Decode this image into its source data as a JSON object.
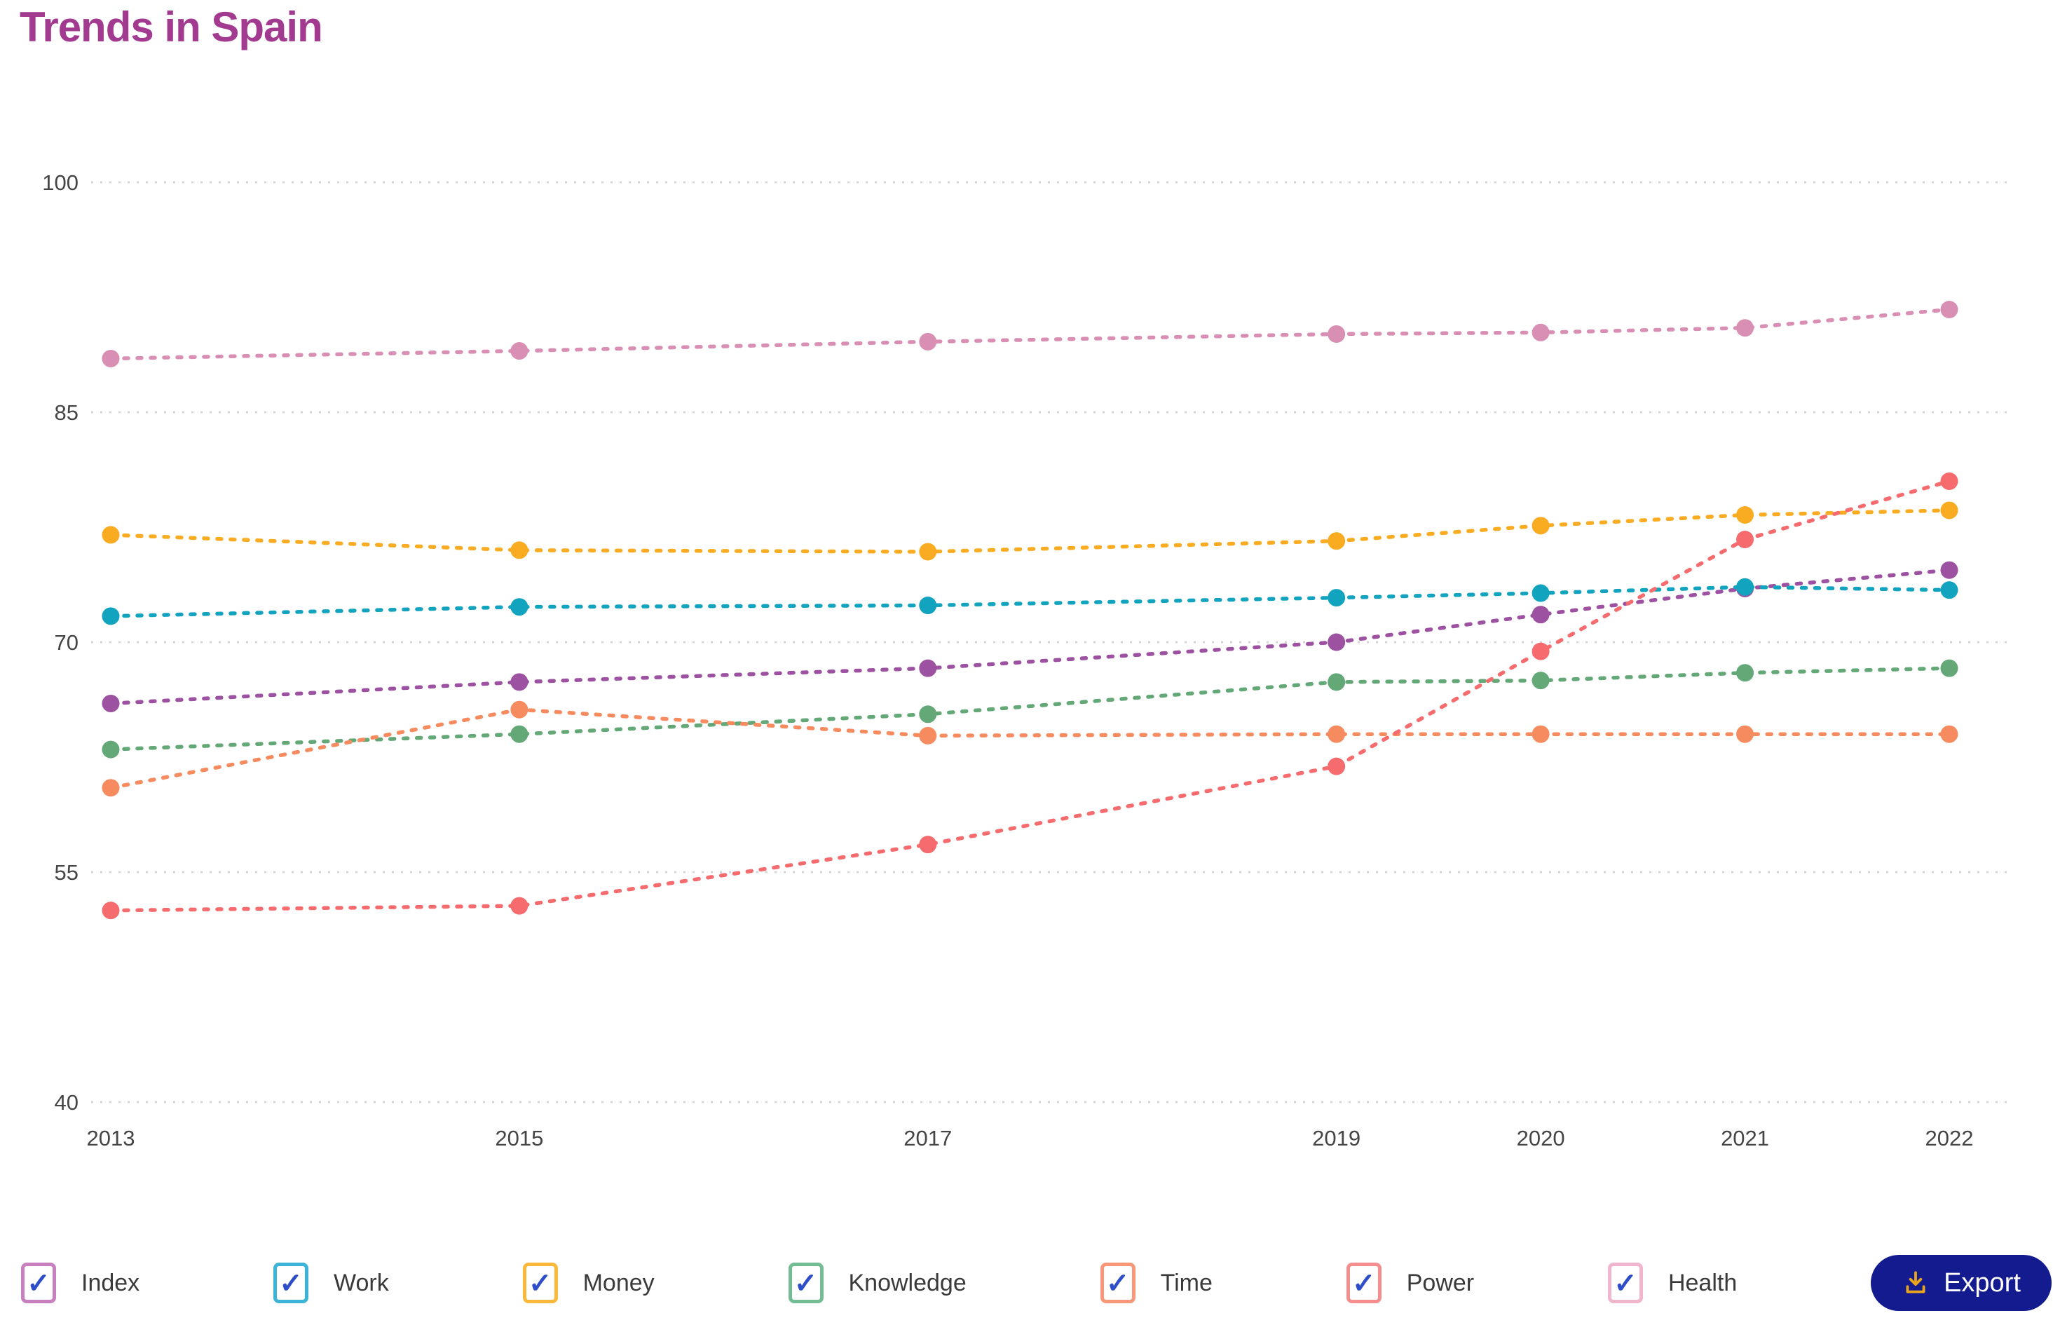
{
  "title": "Trends in Spain",
  "colors": {
    "title": "#A23A90",
    "grid": "#D6D6D6",
    "axis_label": "#454545",
    "legend_label": "#3A3A3A",
    "check": "#2D4EC8",
    "background": "#FFFFFF"
  },
  "legend": {
    "check_glyph": "✓",
    "items": [
      {
        "id": "index",
        "label": "Index",
        "border": "#C77FC0"
      },
      {
        "id": "work",
        "label": "Work",
        "border": "#3CB4D8"
      },
      {
        "id": "money",
        "label": "Money",
        "border": "#FBB93C"
      },
      {
        "id": "knowledge",
        "label": "Knowledge",
        "border": "#74BD94"
      },
      {
        "id": "time",
        "label": "Time",
        "border": "#F99879"
      },
      {
        "id": "power",
        "label": "Power",
        "border": "#F58F8F"
      },
      {
        "id": "health",
        "label": "Health",
        "border": "#EFB6CE"
      }
    ]
  },
  "export": {
    "label": "Export",
    "bg": "#141B8F",
    "text_color": "#FFFFFF",
    "icon_color": "#E9A61C"
  },
  "chart_data": {
    "type": "line",
    "title": "Trends in Spain",
    "x": [
      2013,
      2015,
      2017,
      2019,
      2020,
      2021,
      2022
    ],
    "y_ticks": [
      100,
      85,
      70,
      55,
      40
    ],
    "ylim": [
      40,
      100
    ],
    "xlim": [
      2013,
      2022
    ],
    "grid": "horizontal dotted gridlines",
    "line_style": "dotted lines with circular point markers",
    "legend_position": "bottom",
    "series": [
      {
        "id": "index",
        "name": "Index",
        "color": "#9C51A1",
        "values": [
          66.0,
          67.4,
          68.3,
          70.0,
          71.8,
          73.5,
          74.7
        ]
      },
      {
        "id": "work",
        "name": "Work",
        "color": "#12A3BF",
        "values": [
          71.7,
          72.3,
          72.4,
          72.9,
          73.2,
          73.6,
          73.4
        ]
      },
      {
        "id": "money",
        "name": "Money",
        "color": "#F9AC21",
        "values": [
          77.0,
          76.0,
          75.9,
          76.6,
          77.6,
          78.3,
          78.6
        ]
      },
      {
        "id": "knowledge",
        "name": "Knowledge",
        "color": "#63A876",
        "values": [
          63.0,
          64.0,
          65.3,
          67.4,
          67.5,
          68.0,
          68.3
        ]
      },
      {
        "id": "time",
        "name": "Time",
        "color": "#F78B60",
        "values": [
          60.5,
          65.6,
          63.9,
          64.0,
          64.0,
          64.0,
          64.0
        ]
      },
      {
        "id": "power",
        "name": "Power",
        "color": "#F56B6E",
        "values": [
          52.5,
          52.8,
          56.8,
          61.9,
          69.4,
          76.7,
          80.5
        ]
      },
      {
        "id": "health",
        "name": "Health",
        "color": "#D88FB3",
        "values": [
          88.5,
          89.0,
          89.6,
          90.1,
          90.2,
          90.5,
          91.7
        ]
      }
    ]
  }
}
